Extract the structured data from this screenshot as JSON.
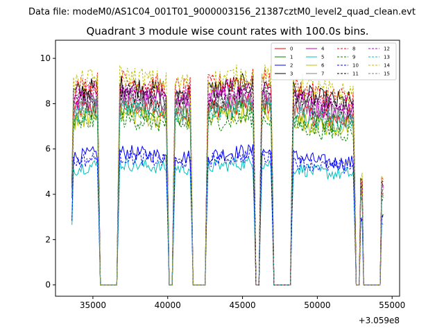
{
  "chart_data": {
    "type": "line",
    "suptitle": "Data file: modeM0/AS1C04_001T01_9000003156_21387cztM0_level2_quad_clean.evt",
    "title": "Quadrant 3 module wise count rates with 100.0s bins.",
    "xlabel": "",
    "ylabel": "",
    "x_offset_label": "+3.059e8",
    "xlim": [
      32500,
      55500
    ],
    "ylim": [
      -0.5,
      10.8
    ],
    "x_ticks": [
      35000,
      40000,
      45000,
      50000,
      55000
    ],
    "x_tick_labels": [
      "35000",
      "40000",
      "45000",
      "50000",
      "55000"
    ],
    "y_ticks": [
      0,
      2,
      4,
      6,
      8,
      10
    ],
    "y_tick_labels": [
      "0",
      "2",
      "4",
      "6",
      "8",
      "10"
    ],
    "grid": false,
    "legend_position": "top-right",
    "legend_columns": 4,
    "segments": [
      {
        "start": 33600,
        "end": 35400
      },
      {
        "start": 36700,
        "end": 40000
      },
      {
        "start": 40400,
        "end": 41600
      },
      {
        "start": 42600,
        "end": 45800
      },
      {
        "start": 46200,
        "end": 47000
      },
      {
        "start": 48300,
        "end": 52500
      },
      {
        "start": 52900,
        "end": 53000
      },
      {
        "start": 54300,
        "end": 54400
      }
    ],
    "series": [
      {
        "name": "0",
        "color": "#ff0000",
        "style": "solid",
        "level": 7.6
      },
      {
        "name": "1",
        "color": "#008000",
        "style": "solid",
        "level": 7.4
      },
      {
        "name": "2",
        "color": "#0000ff",
        "style": "solid",
        "level": 5.6
      },
      {
        "name": "3",
        "color": "#000000",
        "style": "solid",
        "level": 8.4
      },
      {
        "name": "4",
        "color": "#bf00bf",
        "style": "solid",
        "level": 8.0
      },
      {
        "name": "5",
        "color": "#00bfbf",
        "style": "solid",
        "level": 5.1
      },
      {
        "name": "6",
        "color": "#bfbf00",
        "style": "solid",
        "level": 7.2
      },
      {
        "name": "7",
        "color": "#808080",
        "style": "solid",
        "level": 7.8
      },
      {
        "name": "8",
        "color": "#ff0000",
        "style": "dashed",
        "level": 8.6
      },
      {
        "name": "9",
        "color": "#008000",
        "style": "dashed",
        "level": 7.0
      },
      {
        "name": "10",
        "color": "#0000ff",
        "style": "dashed",
        "level": 5.4
      },
      {
        "name": "11",
        "color": "#000000",
        "style": "dashed",
        "level": 8.1
      },
      {
        "name": "12",
        "color": "#bf00bf",
        "style": "dashed",
        "level": 8.3
      },
      {
        "name": "13",
        "color": "#00bfbf",
        "style": "dashed",
        "level": 7.5
      },
      {
        "name": "14",
        "color": "#bfbf00",
        "style": "dashed",
        "level": 8.8
      },
      {
        "name": "15",
        "color": "#808080",
        "style": "dashed",
        "level": 7.7
      }
    ]
  }
}
